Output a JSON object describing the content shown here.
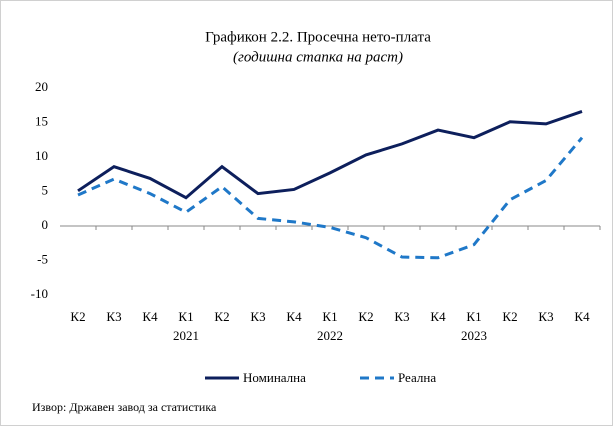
{
  "chart_data": {
    "type": "line",
    "title": "Графикон 2.2. Просечна нето-плата",
    "subtitle": "(годишна стапка на раст)",
    "categories": [
      "К2",
      "К3",
      "К4",
      "К1",
      "К2",
      "К3",
      "К4",
      "К1",
      "К2",
      "К3",
      "К4",
      "К1",
      "К2",
      "К3",
      "К4"
    ],
    "years": [
      null,
      null,
      null,
      "2021",
      null,
      null,
      null,
      "2022",
      null,
      null,
      null,
      "2023",
      null,
      null,
      null
    ],
    "series": [
      {
        "name": "Номинална",
        "color": "#0d1f5c",
        "dash": false,
        "values": [
          5.1,
          8.6,
          6.9,
          4.1,
          8.6,
          4.7,
          5.3,
          7.7,
          10.3,
          11.9,
          13.9,
          12.8,
          15.1,
          14.8,
          16.6
        ]
      },
      {
        "name": "Реална",
        "color": "#1f78c8",
        "dash": true,
        "values": [
          4.5,
          6.8,
          4.7,
          2.0,
          5.7,
          1.1,
          0.6,
          -0.2,
          -1.7,
          -4.5,
          -4.6,
          -2.7,
          3.8,
          6.6,
          12.8
        ]
      }
    ],
    "ylim": [
      -10,
      20
    ],
    "yticks": [
      -10,
      -5,
      0,
      5,
      10,
      15,
      20
    ],
    "grid": false,
    "legend": "bottom",
    "source": "Извор: Државен завод за статистика"
  }
}
